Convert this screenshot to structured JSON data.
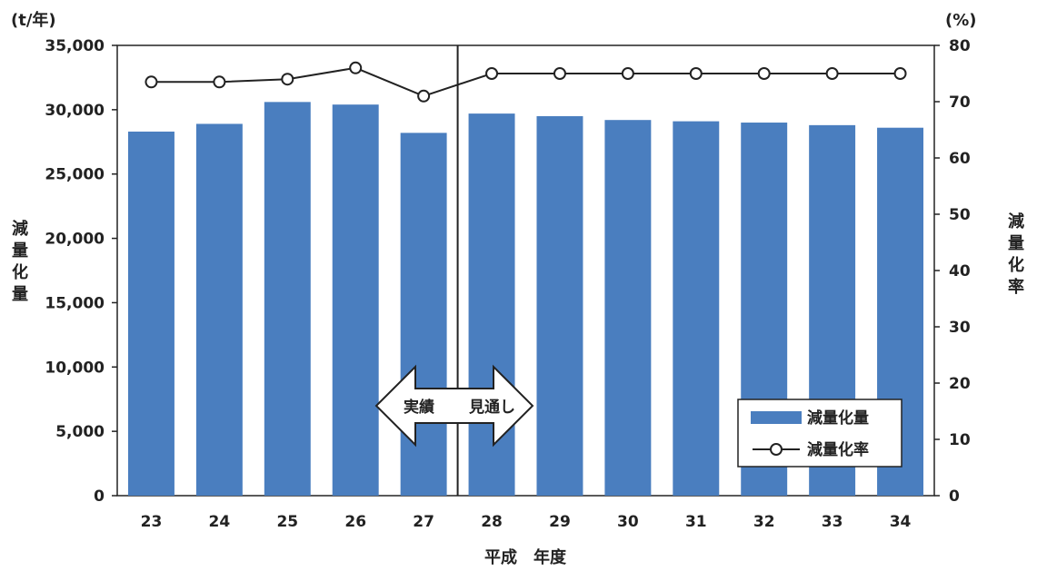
{
  "chart_data": {
    "type": "bar",
    "x_axis_title": "平成　年度",
    "categories": [
      "23",
      "24",
      "25",
      "26",
      "27",
      "28",
      "29",
      "30",
      "31",
      "32",
      "33",
      "34"
    ],
    "series": [
      {
        "name": "減量化量",
        "kind": "bar",
        "axis": "left",
        "color": "#4a7ebf",
        "values": [
          28300,
          28900,
          30600,
          30400,
          28200,
          29700,
          29500,
          29200,
          29100,
          29000,
          28800,
          28600
        ]
      },
      {
        "name": "減量化率",
        "kind": "line",
        "axis": "right",
        "color": "#222222",
        "marker": "open-circle",
        "values": [
          73.5,
          73.5,
          74,
          76,
          71,
          75,
          75,
          75,
          75,
          75,
          75,
          75
        ]
      }
    ],
    "y_left": {
      "unit": "(t/年)",
      "label": "減量化量",
      "range": [
        0,
        35000
      ],
      "ticks": [
        "0",
        "5,000",
        "10,000",
        "15,000",
        "20,000",
        "25,000",
        "30,000",
        "35,000"
      ]
    },
    "y_right": {
      "unit": "(%)",
      "label": "減量化率",
      "range": [
        0,
        80
      ],
      "ticks": [
        "0",
        "10",
        "20",
        "30",
        "40",
        "50",
        "60",
        "70",
        "80"
      ]
    },
    "annotation": {
      "left_text": "実績",
      "right_text": "見通し",
      "divider_after_category": "27"
    },
    "legend": {
      "position": "bottom-right",
      "items": [
        "減量化量",
        "減量化率"
      ]
    },
    "grid": false
  }
}
